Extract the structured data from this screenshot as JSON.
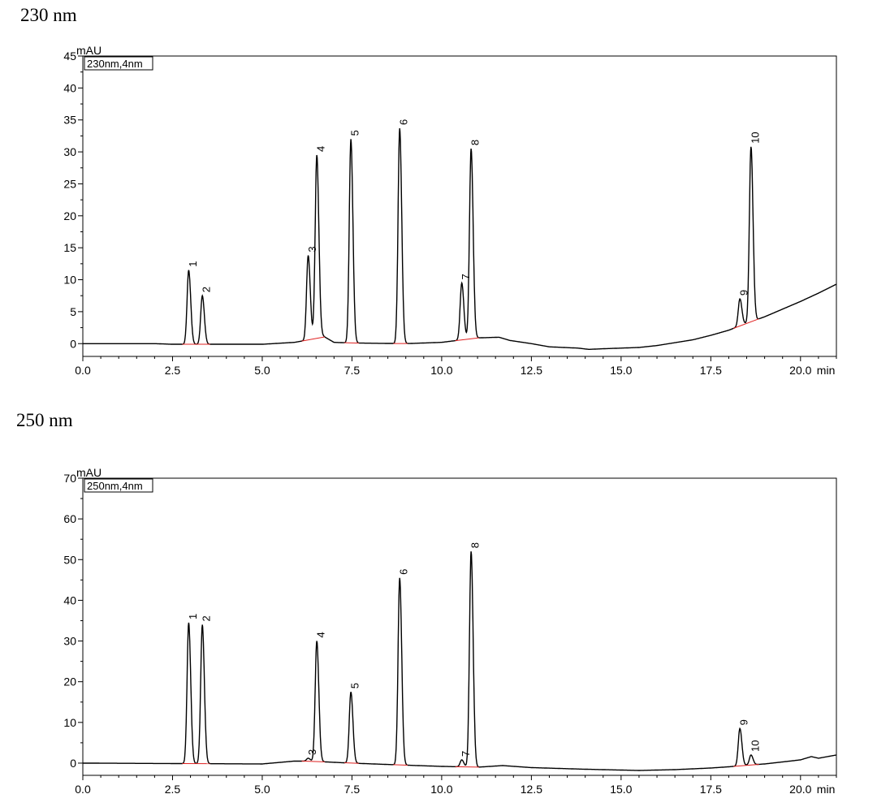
{
  "panels": [
    {
      "heading": "230 nm"
    },
    {
      "heading": "250 nm"
    }
  ],
  "chart_data": [
    {
      "type": "line",
      "title": "230 nm",
      "legend": "230nm,4nm",
      "ylabel": "mAU",
      "xunit": "min",
      "xlim": [
        0,
        21.0
      ],
      "ylim": [
        -2,
        45
      ],
      "yticks": [
        0,
        5,
        10,
        15,
        20,
        25,
        30,
        35,
        40,
        45
      ],
      "xticks": [
        "0.0",
        "2.5",
        "5.0",
        "7.5",
        "10.0",
        "12.5",
        "15.0",
        "17.5",
        "20.0"
      ],
      "grid": false,
      "line_color": "#000000",
      "baseline_color": "#e02020",
      "series": [
        {
          "x": [
            0,
            2.0,
            2.5,
            5.0,
            5.9,
            6.3,
            6.6,
            7.0,
            7.5,
            9.0,
            10.0,
            11.0,
            11.6,
            11.9,
            12.5,
            13.0,
            13.8,
            14.1,
            14.5,
            15.5,
            16.0,
            17.0,
            17.5,
            18.0,
            18.5,
            19.0,
            19.5,
            20.0,
            20.5,
            21.0
          ],
          "y": [
            0,
            0,
            -0.1,
            -0.1,
            0.2,
            0.6,
            1.5,
            0.2,
            0.1,
            0,
            0.2,
            0.9,
            1.0,
            0.5,
            0,
            -0.5,
            -0.7,
            -0.9,
            -0.8,
            -0.6,
            -0.3,
            0.6,
            1.3,
            2.1,
            3.2,
            4.2,
            5.4,
            6.6,
            7.9,
            9.3
          ]
        }
      ],
      "peaks": [
        {
          "label": "1",
          "rt": 2.95,
          "height": 11.5
        },
        {
          "label": "2",
          "rt": 3.33,
          "height": 7.5
        },
        {
          "label": "3",
          "rt": 6.28,
          "height": 13.8
        },
        {
          "label": "4",
          "rt": 6.52,
          "height": 29.5
        },
        {
          "label": "5",
          "rt": 7.47,
          "height": 32.0
        },
        {
          "label": "6",
          "rt": 8.83,
          "height": 33.7
        },
        {
          "label": "7",
          "rt": 10.56,
          "height": 9.5
        },
        {
          "label": "8",
          "rt": 10.82,
          "height": 30.5
        },
        {
          "label": "9",
          "rt": 18.31,
          "height": 7.0
        },
        {
          "label": "10",
          "rt": 18.62,
          "height": 30.8
        }
      ]
    },
    {
      "type": "line",
      "title": "250 nm",
      "legend": "250nm,4nm",
      "ylabel": "mAU",
      "xunit": "min",
      "xlim": [
        0,
        21.0
      ],
      "ylim": [
        -3,
        70
      ],
      "yticks": [
        0,
        10,
        20,
        30,
        40,
        50,
        60,
        70
      ],
      "xticks": [
        "0.0",
        "2.5",
        "5.0",
        "7.5",
        "10.0",
        "12.5",
        "15.0",
        "17.5",
        "20.0"
      ],
      "grid": false,
      "line_color": "#000000",
      "baseline_color": "#e02020",
      "series": [
        {
          "x": [
            0,
            2.5,
            5.0,
            5.9,
            6.3,
            7.0,
            7.5,
            9.0,
            10.0,
            11.0,
            11.7,
            12.5,
            14.0,
            15.5,
            16.5,
            17.5,
            18.0,
            18.5,
            19.0,
            19.5,
            20.0,
            20.3,
            20.5,
            21.0
          ],
          "y": [
            0,
            -0.1,
            -0.2,
            0.5,
            0.5,
            0.2,
            0,
            -0.5,
            -0.8,
            -1.0,
            -0.6,
            -1.1,
            -1.5,
            -1.8,
            -1.6,
            -1.2,
            -0.9,
            -0.5,
            -0.2,
            0.3,
            0.8,
            1.6,
            1.2,
            2.0
          ]
        }
      ],
      "peaks": [
        {
          "label": "1",
          "rt": 2.95,
          "height": 34.5
        },
        {
          "label": "2",
          "rt": 3.33,
          "height": 34.0
        },
        {
          "label": "3",
          "rt": 6.28,
          "height": 1.2
        },
        {
          "label": "4",
          "rt": 6.52,
          "height": 30.0
        },
        {
          "label": "5",
          "rt": 7.47,
          "height": 17.5
        },
        {
          "label": "6",
          "rt": 8.83,
          "height": 45.5
        },
        {
          "label": "7",
          "rt": 10.56,
          "height": 0.8
        },
        {
          "label": "8",
          "rt": 10.82,
          "height": 52.0
        },
        {
          "label": "9",
          "rt": 18.31,
          "height": 8.5
        },
        {
          "label": "10",
          "rt": 18.62,
          "height": 2.0
        }
      ]
    }
  ]
}
